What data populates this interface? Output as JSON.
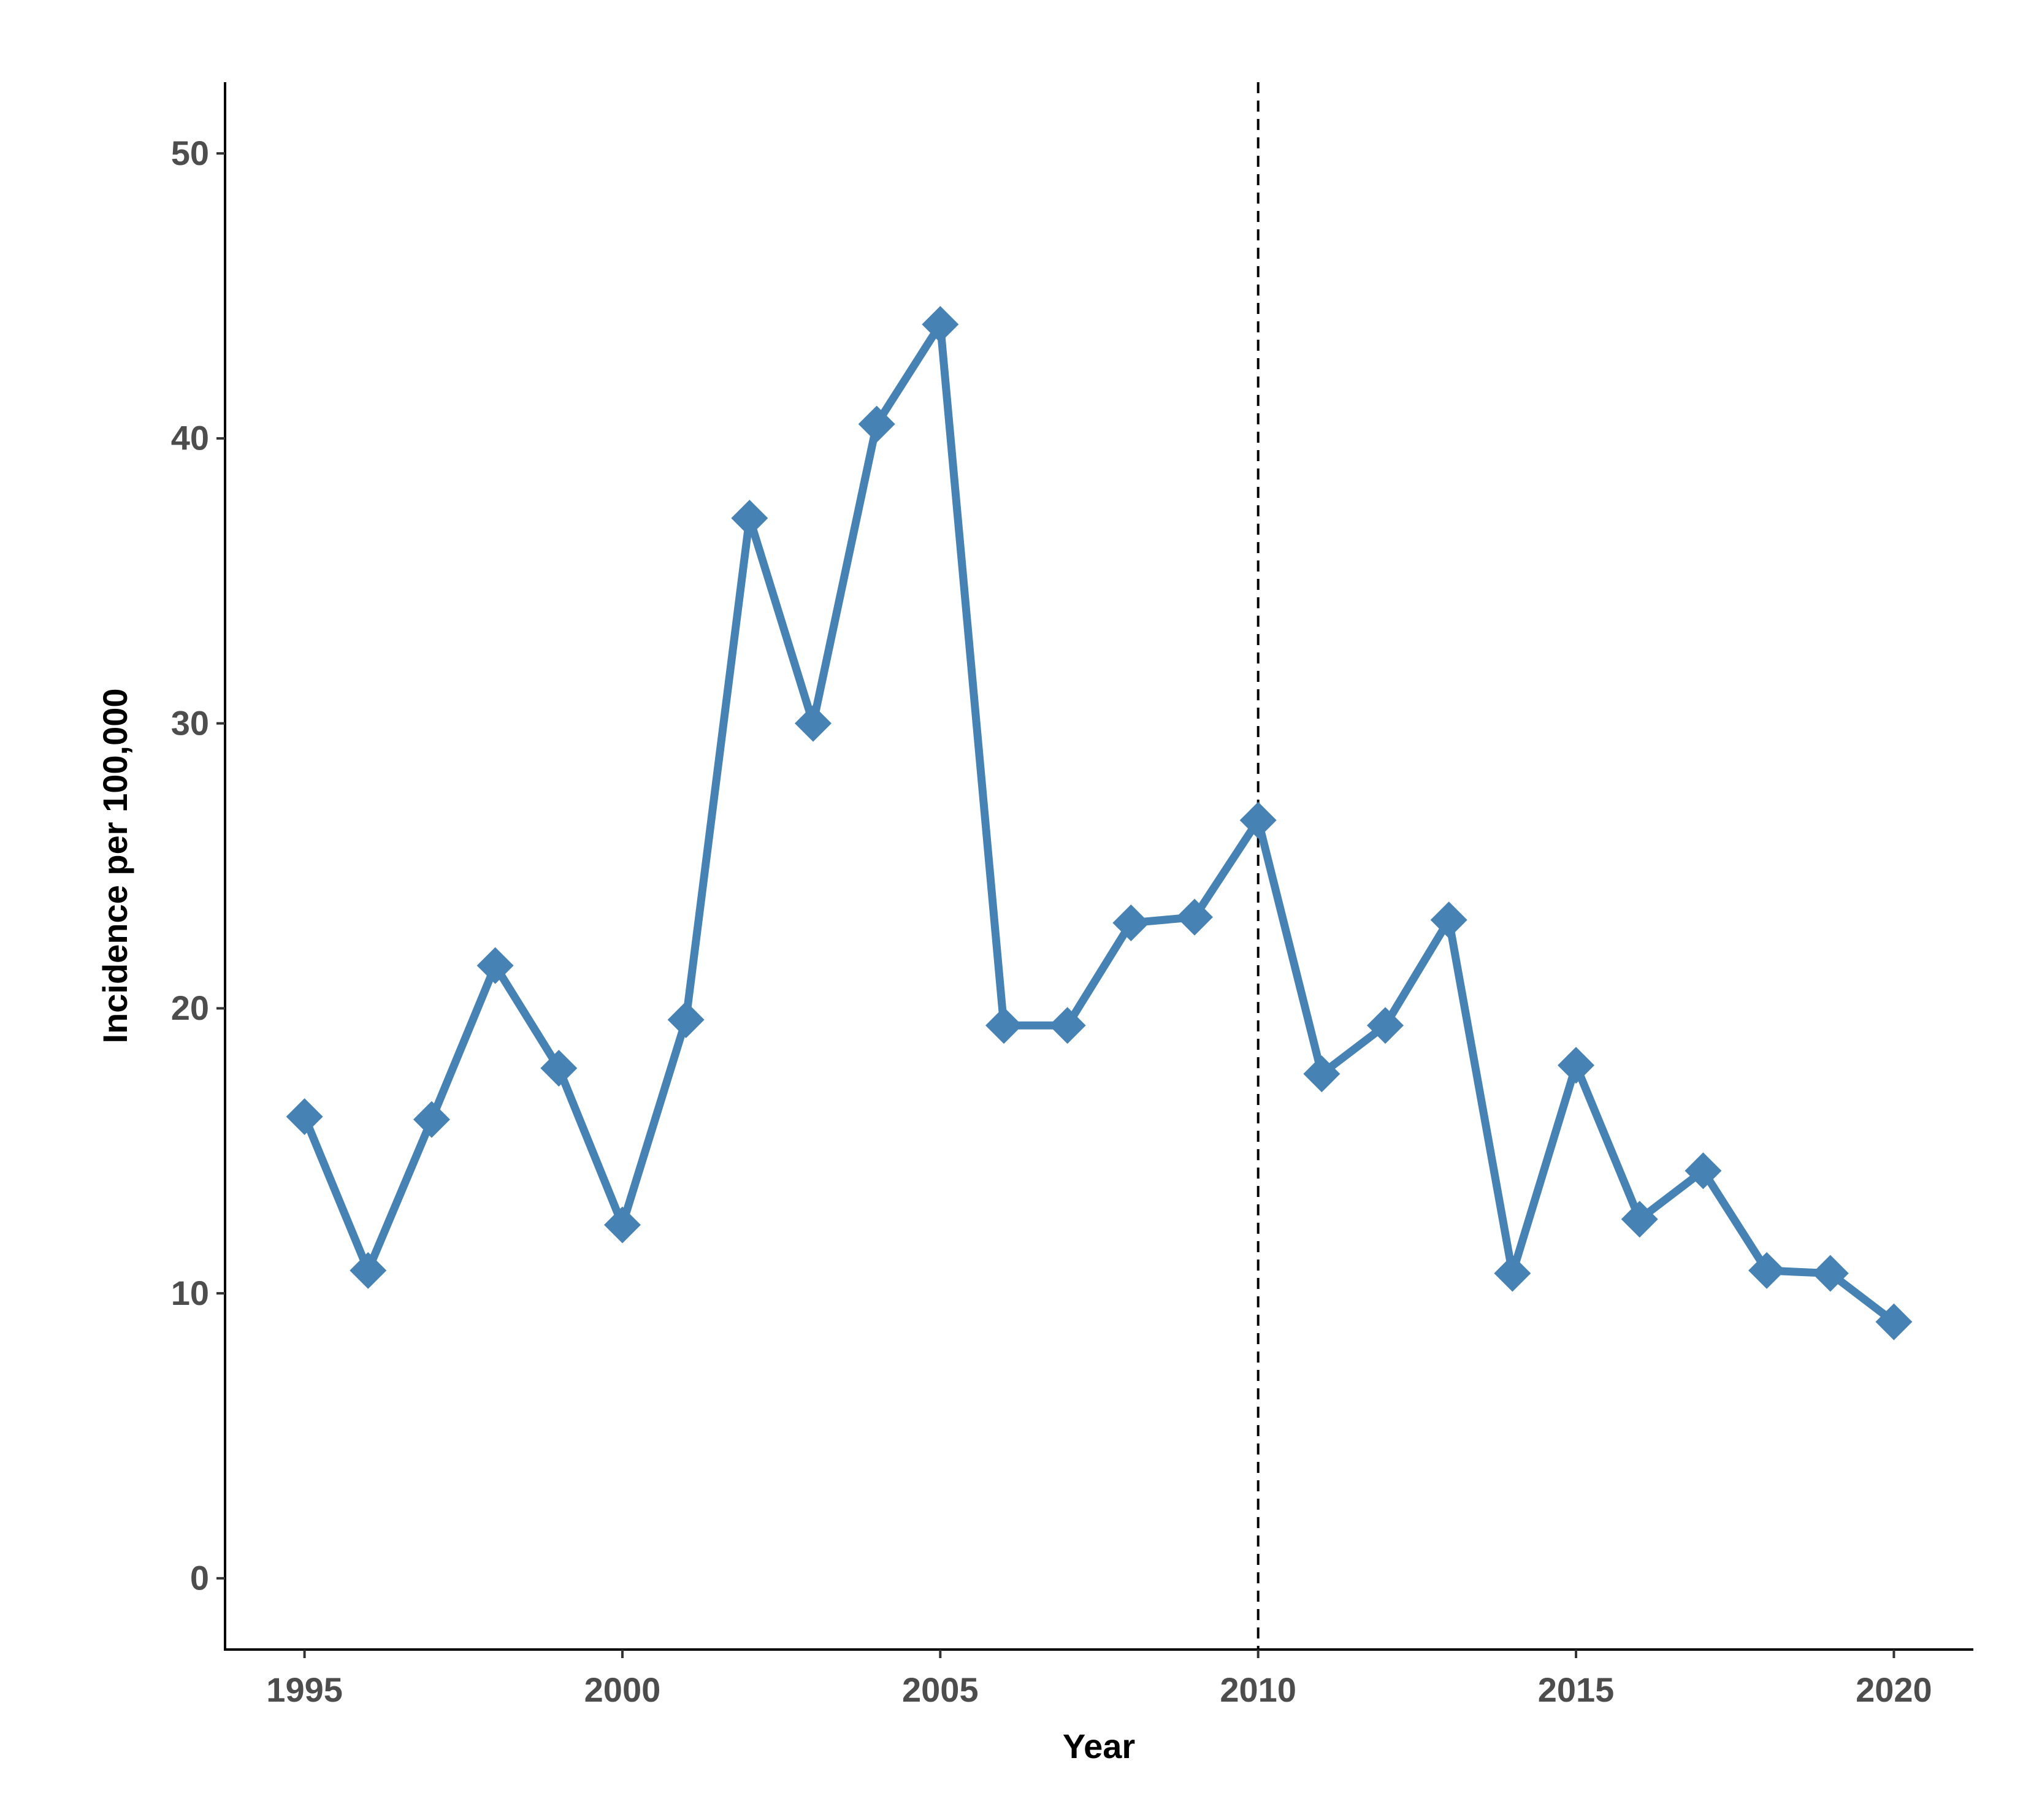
{
  "chart_data": {
    "type": "line",
    "x_label": "Year",
    "y_label": "Incidence per 100,000",
    "x": [
      1995,
      1996,
      1997,
      1998,
      1999,
      2000,
      2001,
      2002,
      2003,
      2004,
      2005,
      2006,
      2007,
      2008,
      2009,
      2010,
      2011,
      2012,
      2013,
      2014,
      2015,
      2016,
      2017,
      2018,
      2019,
      2020
    ],
    "values": [
      16.2,
      10.8,
      16.1,
      21.5,
      17.9,
      12.4,
      19.6,
      37.2,
      30.0,
      40.5,
      44.0,
      19.4,
      19.4,
      23.0,
      23.2,
      26.6,
      17.7,
      19.4,
      23.1,
      10.7,
      18.0,
      12.6,
      14.3,
      10.8,
      10.7,
      9.0
    ],
    "color": "#4682b4",
    "marker": "diamond",
    "vline": 2010,
    "xlim": [
      1993.75,
      2021.25
    ],
    "xticks": [
      1995,
      2000,
      2005,
      2010,
      2015,
      2020
    ],
    "ylim": [
      -2.5,
      52.5
    ],
    "yticks": [
      0,
      10,
      20,
      30,
      40,
      50
    ],
    "grid": false
  }
}
